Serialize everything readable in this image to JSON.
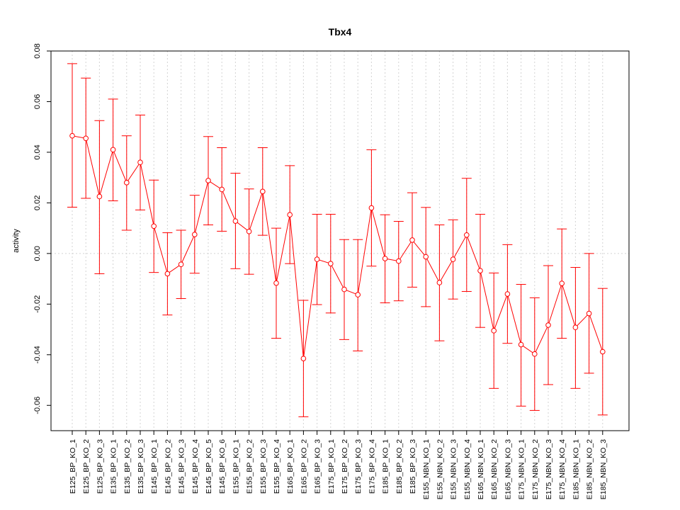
{
  "chart_data": {
    "type": "line",
    "title": "Tbx4",
    "xlabel": "",
    "ylabel": "activity",
    "ylim": [
      -0.07,
      0.08
    ],
    "yticks": [
      -0.06,
      -0.04,
      -0.02,
      0.0,
      0.02,
      0.04,
      0.06,
      0.08
    ],
    "ytick_labels": [
      "-0.06",
      "-0.04",
      "-0.02",
      "0.00",
      "0.02",
      "0.04",
      "0.06",
      "0.08"
    ],
    "grid": true,
    "color": "#ff0000",
    "categories": [
      "E125_BP_KO_1",
      "E125_BP_KO_2",
      "E125_BP_KO_3",
      "E135_BP_KO_1",
      "E135_BP_KO_2",
      "E135_BP_KO_3",
      "E145_BP_KO_1",
      "E145_BP_KO_2",
      "E145_BP_KO_3",
      "E145_BP_KO_4",
      "E145_BP_KO_5",
      "E145_BP_KO_6",
      "E155_BP_KO_1",
      "E155_BP_KO_2",
      "E155_BP_KO_3",
      "E155_BP_KO_4",
      "E165_BP_KO_1",
      "E165_BP_KO_2",
      "E165_BP_KO_3",
      "E175_BP_KO_1",
      "E175_BP_KO_2",
      "E175_BP_KO_3",
      "E175_BP_KO_4",
      "E185_BP_KO_1",
      "E185_BP_KO_2",
      "E185_BP_KO_3",
      "E155_NBN_KO_1",
      "E155_NBN_KO_2",
      "E155_NBN_KO_3",
      "E155_NBN_KO_4",
      "E165_NBN_KO_1",
      "E165_NBN_KO_2",
      "E165_NBN_KO_3",
      "E175_NBN_KO_1",
      "E175_NBN_KO_2",
      "E175_NBN_KO_3",
      "E175_NBN_KO_4",
      "E185_NBN_KO_1",
      "E185_NBN_KO_2",
      "E185_NBN_KO_3"
    ],
    "values": [
      0.0465,
      0.0455,
      0.0225,
      0.041,
      0.028,
      0.036,
      0.0108,
      -0.008,
      -0.0043,
      0.0075,
      0.0288,
      0.0253,
      0.0128,
      0.0087,
      0.0245,
      -0.0117,
      0.0153,
      -0.0415,
      -0.0023,
      -0.004,
      -0.0142,
      -0.0163,
      0.018,
      -0.002,
      -0.003,
      0.0053,
      -0.0013,
      -0.0115,
      -0.0023,
      0.0073,
      -0.0068,
      -0.0305,
      -0.016,
      -0.036,
      -0.0397,
      -0.0283,
      -0.0118,
      -0.0292,
      -0.0237,
      -0.0388
    ],
    "upper": [
      0.075,
      0.0693,
      0.0525,
      0.061,
      0.0465,
      0.0547,
      0.029,
      0.0082,
      0.0092,
      0.023,
      0.0462,
      0.0418,
      0.0317,
      0.0255,
      0.0418,
      0.01,
      0.0347,
      -0.0185,
      0.0155,
      0.0155,
      0.0055,
      0.0055,
      0.041,
      0.0153,
      0.0127,
      0.024,
      0.0182,
      0.0113,
      0.0133,
      0.0297,
      0.0155,
      -0.0077,
      0.0035,
      -0.0122,
      -0.0175,
      -0.0048,
      0.0097,
      -0.0055,
      0.0,
      -0.0138
    ],
    "lower": [
      0.0183,
      0.0218,
      -0.008,
      0.0208,
      0.0092,
      0.0172,
      -0.0075,
      -0.0243,
      -0.0178,
      -0.0078,
      0.0113,
      0.0088,
      -0.006,
      -0.0082,
      0.0072,
      -0.0335,
      -0.004,
      -0.0645,
      -0.0202,
      -0.0235,
      -0.034,
      -0.0385,
      -0.005,
      -0.0195,
      -0.0187,
      -0.0133,
      -0.021,
      -0.0345,
      -0.018,
      -0.015,
      -0.0292,
      -0.0533,
      -0.0355,
      -0.0603,
      -0.062,
      -0.0518,
      -0.0335,
      -0.0533,
      -0.0473,
      -0.0638
    ]
  }
}
